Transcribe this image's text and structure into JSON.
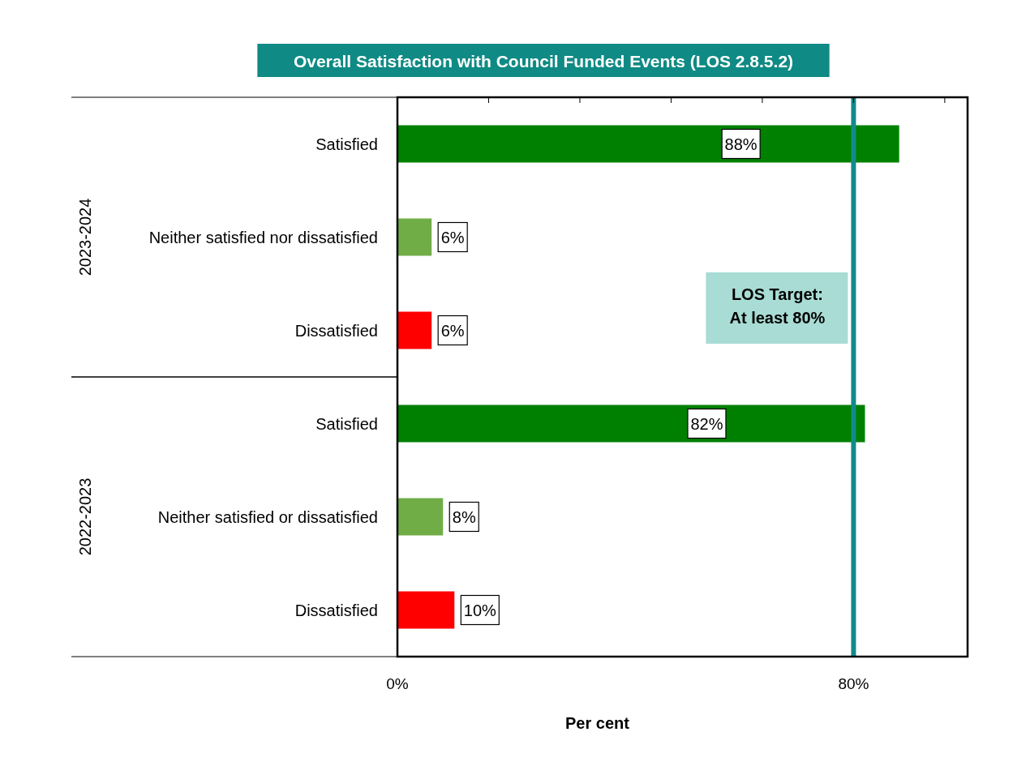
{
  "chart_data": {
    "type": "bar",
    "orientation": "horizontal",
    "title": "Overall Satisfaction with Council Funded Events (LOS 2.8.5.2)",
    "xlabel": "Per cent",
    "categories": [
      "Satisfied",
      "Neither satisfied nor dissatisfied",
      "Dissatisfied",
      "Satisfied",
      "Neither satisfied or dissatisfied",
      "Dissatisfied"
    ],
    "values": [
      88,
      6,
      6,
      82,
      8,
      10
    ],
    "colors": [
      "#008000",
      "#70ad47",
      "#ff0000",
      "#008000",
      "#70ad47",
      "#ff0000"
    ],
    "value_labels": [
      "88%",
      "6%",
      "6%",
      "82%",
      "8%",
      "10%"
    ],
    "xlim": [
      0,
      100
    ],
    "xticks": [
      {
        "value": 0,
        "label": "0%"
      },
      {
        "value": 16,
        "label": null
      },
      {
        "value": 32,
        "label": null
      },
      {
        "value": 48,
        "label": null
      },
      {
        "value": 64,
        "label": null
      },
      {
        "value": 80,
        "label": "80%"
      },
      {
        "value": 96,
        "label": null
      }
    ],
    "ref_lines": [
      {
        "axis": "x",
        "value": 80,
        "label": "LOS Target:\nAt least 80%",
        "color": "#138a8a"
      }
    ],
    "annotations": [
      "2023-2024",
      "2022-2023"
    ],
    "grid": false
  }
}
